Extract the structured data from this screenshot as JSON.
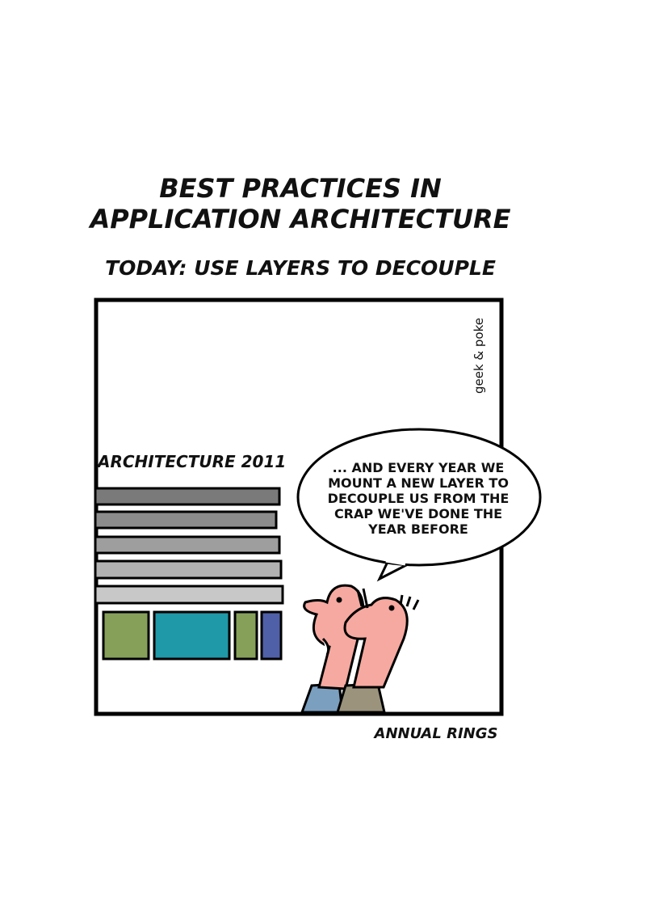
{
  "header": {
    "title_lines": [
      "BEST PRACTICES IN",
      "APPLICATION ARCHITECTURE"
    ],
    "subtitle": "TODAY: USE LAYERS TO DECOUPLE"
  },
  "panel": {
    "signature": "geek & poke",
    "label": "ARCHITECTURE 2011",
    "speech_lines": [
      "... AND EVERY YEAR WE",
      "MOUNT A NEW LAYER TO",
      "DECOUPLE US FROM THE",
      "CRAP WE'VE DONE THE",
      "YEAR BEFORE"
    ]
  },
  "caption": "ANNUAL RINGS"
}
